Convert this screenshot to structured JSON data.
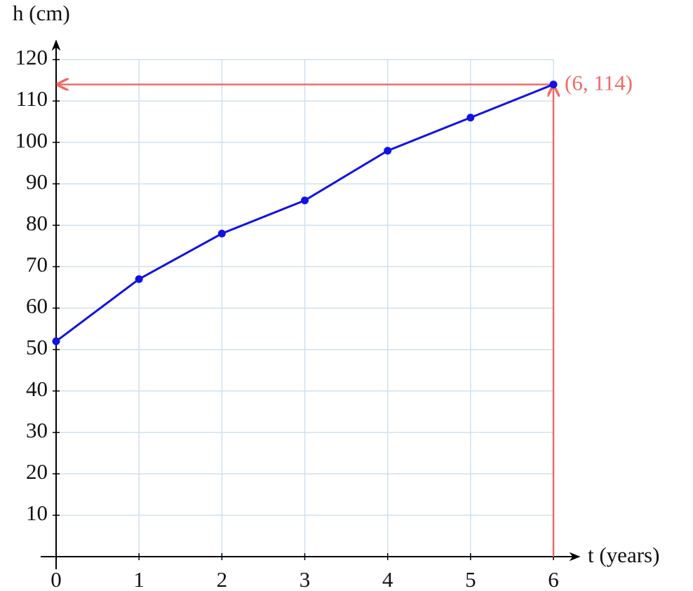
{
  "chart_data": {
    "type": "line",
    "x_label": "t (years)",
    "y_label": "h (cm)",
    "x": [
      0,
      1,
      2,
      3,
      4,
      5,
      6
    ],
    "values": [
      52,
      67,
      78,
      86,
      98,
      106,
      114
    ],
    "color": "#1212e6",
    "xlim": [
      0,
      6
    ],
    "xticks": [
      0,
      1,
      2,
      3,
      4,
      5,
      6
    ],
    "ylim": [
      0,
      120
    ],
    "yticks": [
      10,
      20,
      30,
      40,
      50,
      60,
      70,
      80,
      90,
      100,
      110,
      120
    ],
    "grid": true,
    "grid_color": "#cfe0ef",
    "annotation": {
      "text": "(6, 114)",
      "x": 6,
      "y": 114,
      "color": "#f06a6a"
    }
  }
}
